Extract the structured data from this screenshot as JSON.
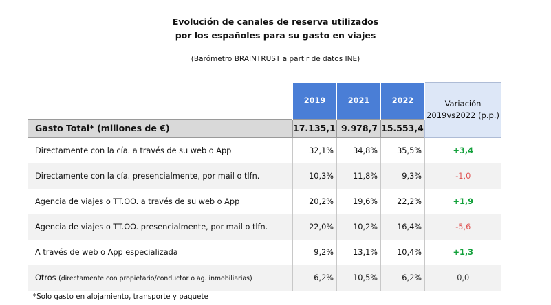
{
  "title_line1": "Evolución de canales de reserva utilizados",
  "title_line2": "por los españoles para su gasto en viajes",
  "subtitle": "(Barómetro BRAINTRUST a partir de datos INE)",
  "headers": {
    "years": [
      "2019",
      "2021",
      "2022"
    ],
    "variation_line1": "Variación",
    "variation_line2": "2019vs2022 (p.p.)"
  },
  "total": {
    "label": "Gasto Total* (millones de €)",
    "values": [
      "17.135,1",
      "9.978,7",
      "15.553,4"
    ]
  },
  "rows": [
    {
      "label": "Directamente con la cía. a través de su web o App",
      "note": "",
      "values": [
        "32,1%",
        "34,8%",
        "35,5%"
      ],
      "variation": "+3,4",
      "trend": "pos"
    },
    {
      "label": "Directamente con la cía. presencialmente, por mail o tlfn.",
      "note": "",
      "values": [
        "10,3%",
        "11,8%",
        "9,3%"
      ],
      "variation": "-1,0",
      "trend": "neg"
    },
    {
      "label": "Agencia de viajes o TT.OO.  a través de su web o App",
      "note": "",
      "values": [
        "20,2%",
        "19,6%",
        "22,2%"
      ],
      "variation": "+1,9",
      "trend": "pos"
    },
    {
      "label": "Agencia de viajes o TT.OO. presencialmente, por mail o tlfn.",
      "note": "",
      "values": [
        "22,0%",
        "10,2%",
        "16,4%"
      ],
      "variation": "-5,6",
      "trend": "neg"
    },
    {
      "label": "A través de web o App especializada",
      "note": "",
      "values": [
        "9,2%",
        "13,1%",
        "10,4%"
      ],
      "variation": "+1,3",
      "trend": "pos"
    },
    {
      "label": "Otros",
      "note": "(directamente con propietario/conductor o ag. inmobiliarias)",
      "values": [
        "6,2%",
        "10,5%",
        "6,2%"
      ],
      "variation": "0,0",
      "trend": "neu"
    }
  ],
  "footnote": "*Solo gasto en alojamiento, transporte y paquete",
  "colors": {
    "header_blue": "#4a7ed6",
    "variation_bg": "#dde7f7",
    "positive": "#12a03a",
    "negative": "#e05555"
  }
}
